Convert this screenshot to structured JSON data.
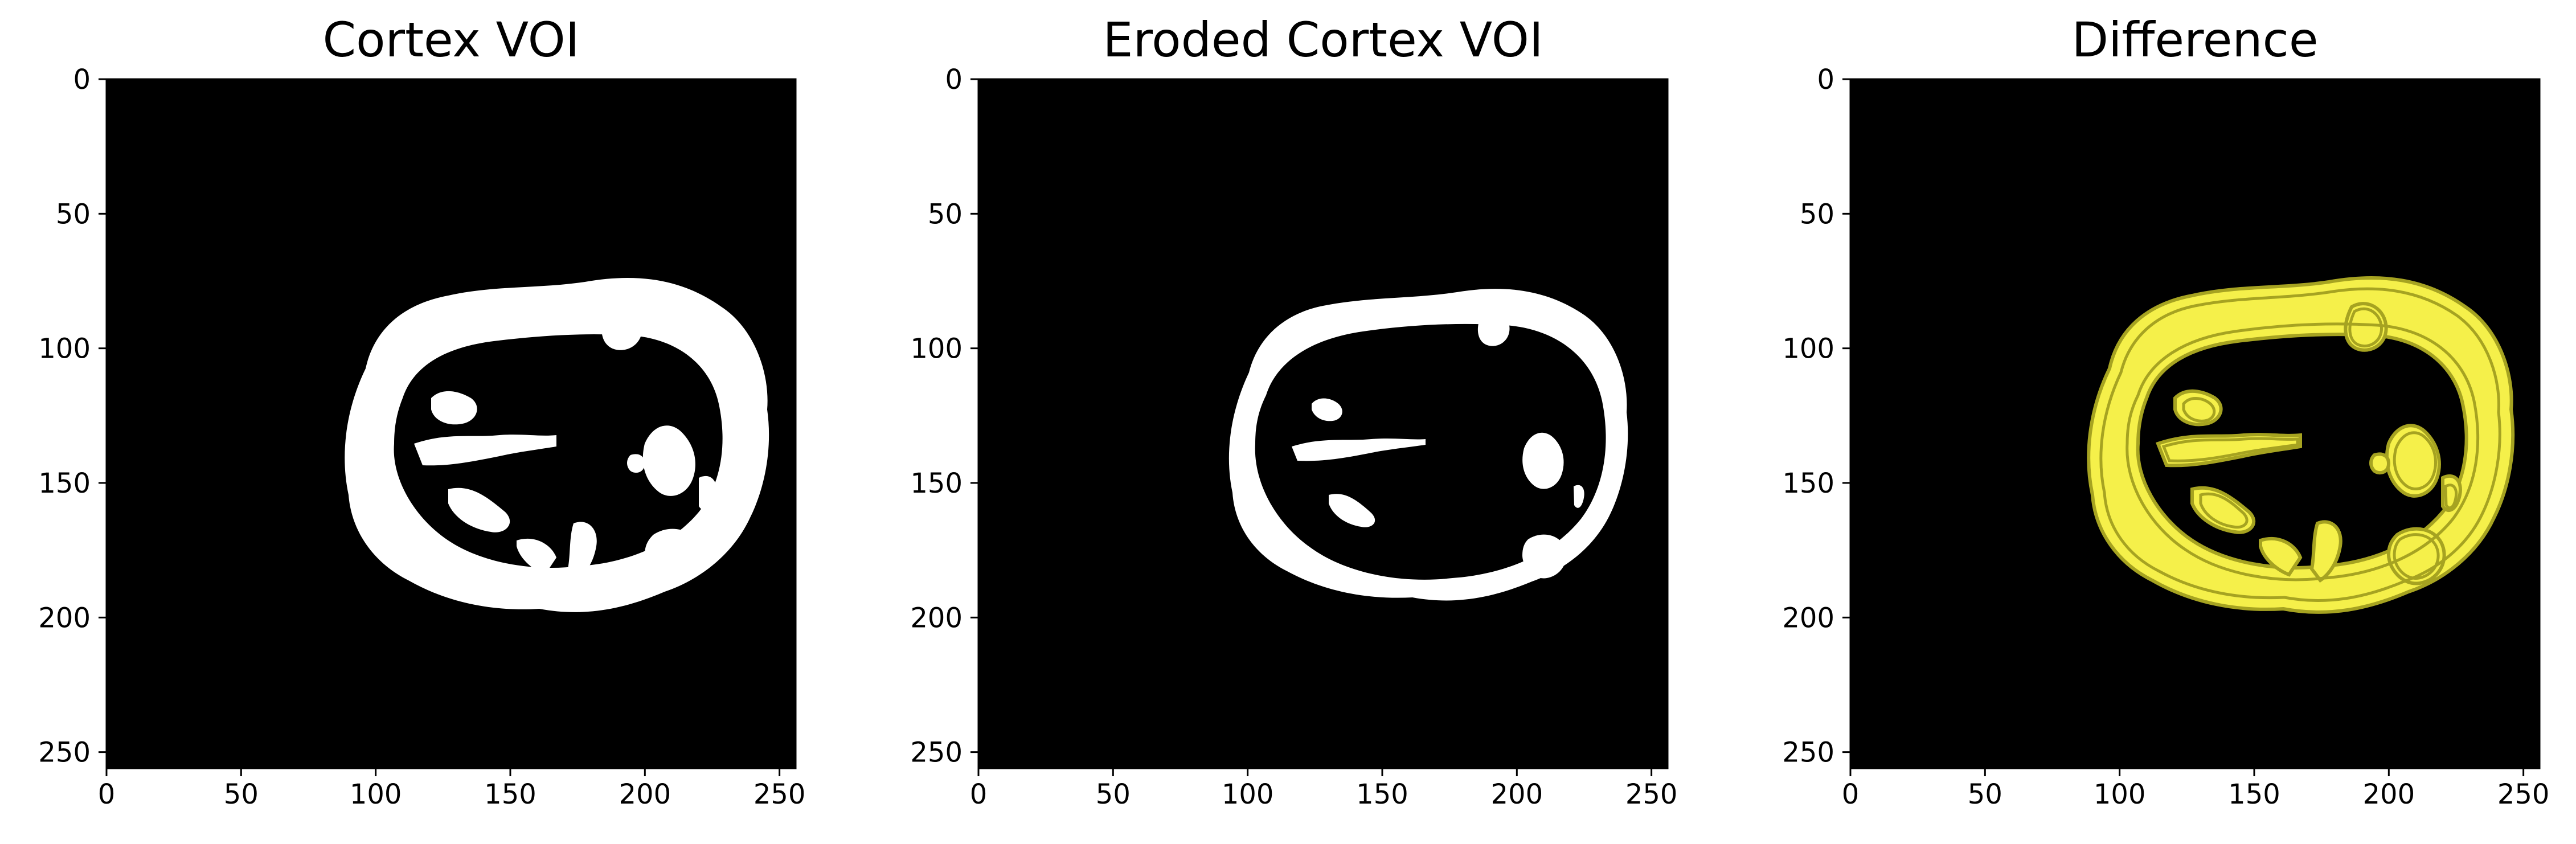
{
  "chart_data": [
    {
      "type": "image",
      "title": "Cortex VOI",
      "colormap": "gray",
      "background_color": "#000000",
      "mask_color": "#ffffff",
      "mask_style": "filled",
      "xlim": [
        0,
        256
      ],
      "ylim": [
        256,
        0
      ],
      "x_ticks": [
        0,
        50,
        100,
        150,
        200,
        250
      ],
      "y_ticks": [
        0,
        50,
        100,
        150,
        200,
        250
      ],
      "x_tick_labels": [
        "0",
        "50",
        "100",
        "150",
        "200",
        "250"
      ],
      "y_tick_labels": [
        "0",
        "50",
        "100",
        "150",
        "200",
        "250"
      ]
    },
    {
      "type": "image",
      "title": "Eroded Cortex VOI",
      "colormap": "gray",
      "background_color": "#000000",
      "mask_color": "#ffffff",
      "mask_style": "eroded",
      "xlim": [
        0,
        256
      ],
      "ylim": [
        256,
        0
      ],
      "x_ticks": [
        0,
        50,
        100,
        150,
        200,
        250
      ],
      "y_ticks": [
        0,
        50,
        100,
        150,
        200,
        250
      ],
      "x_tick_labels": [
        "0",
        "50",
        "100",
        "150",
        "200",
        "250"
      ],
      "y_tick_labels": [
        "0",
        "50",
        "100",
        "150",
        "200",
        "250"
      ]
    },
    {
      "type": "image",
      "title": "Difference",
      "colormap": "black-yellow",
      "background_color": "#000000",
      "mask_color": "#f5f04a",
      "mask_style": "difference",
      "outline_color": "#a6a321",
      "xlim": [
        0,
        256
      ],
      "ylim": [
        256,
        0
      ],
      "x_ticks": [
        0,
        50,
        100,
        150,
        200,
        250
      ],
      "y_ticks": [
        0,
        50,
        100,
        150,
        200,
        250
      ],
      "x_tick_labels": [
        "0",
        "50",
        "100",
        "150",
        "200",
        "250"
      ],
      "y_tick_labels": [
        "0",
        "50",
        "100",
        "150",
        "200",
        "250"
      ]
    }
  ]
}
